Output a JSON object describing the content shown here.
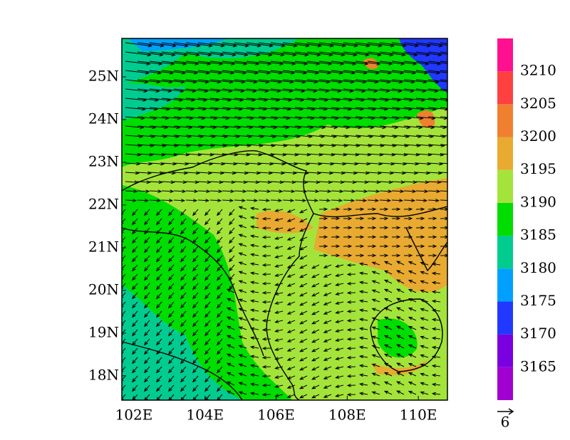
{
  "chart_data": {
    "type": "vector-map",
    "xlim": [
      101.66,
      110.82
    ],
    "ylim": [
      17.43,
      25.9
    ],
    "xticks": [
      {
        "value": 102,
        "label": "102E"
      },
      {
        "value": 104,
        "label": "104E"
      },
      {
        "value": 106,
        "label": "106E"
      },
      {
        "value": 108,
        "label": "108E"
      },
      {
        "value": 110,
        "label": "110E"
      }
    ],
    "yticks": [
      {
        "value": 18,
        "label": "18N"
      },
      {
        "value": 19,
        "label": "19N"
      },
      {
        "value": 20,
        "label": "20N"
      },
      {
        "value": 21,
        "label": "21N"
      },
      {
        "value": 22,
        "label": "22N"
      },
      {
        "value": 23,
        "label": "23N"
      },
      {
        "value": 24,
        "label": "24N"
      },
      {
        "value": 25,
        "label": "25N"
      }
    ],
    "colorbar": {
      "lim": [
        3160,
        3215
      ],
      "levels": [
        3165,
        3170,
        3175,
        3180,
        3185,
        3190,
        3195,
        3200,
        3205,
        3210
      ],
      "colors": [
        "#a000d0",
        "#7a00e0",
        "#2038ff",
        "#00a0ff",
        "#00cc90",
        "#00dd00",
        "#a4e43a",
        "#e8aa30",
        "#f08030",
        "#ff4040",
        "#ff1090"
      ]
    },
    "reference_vector": 6
  }
}
